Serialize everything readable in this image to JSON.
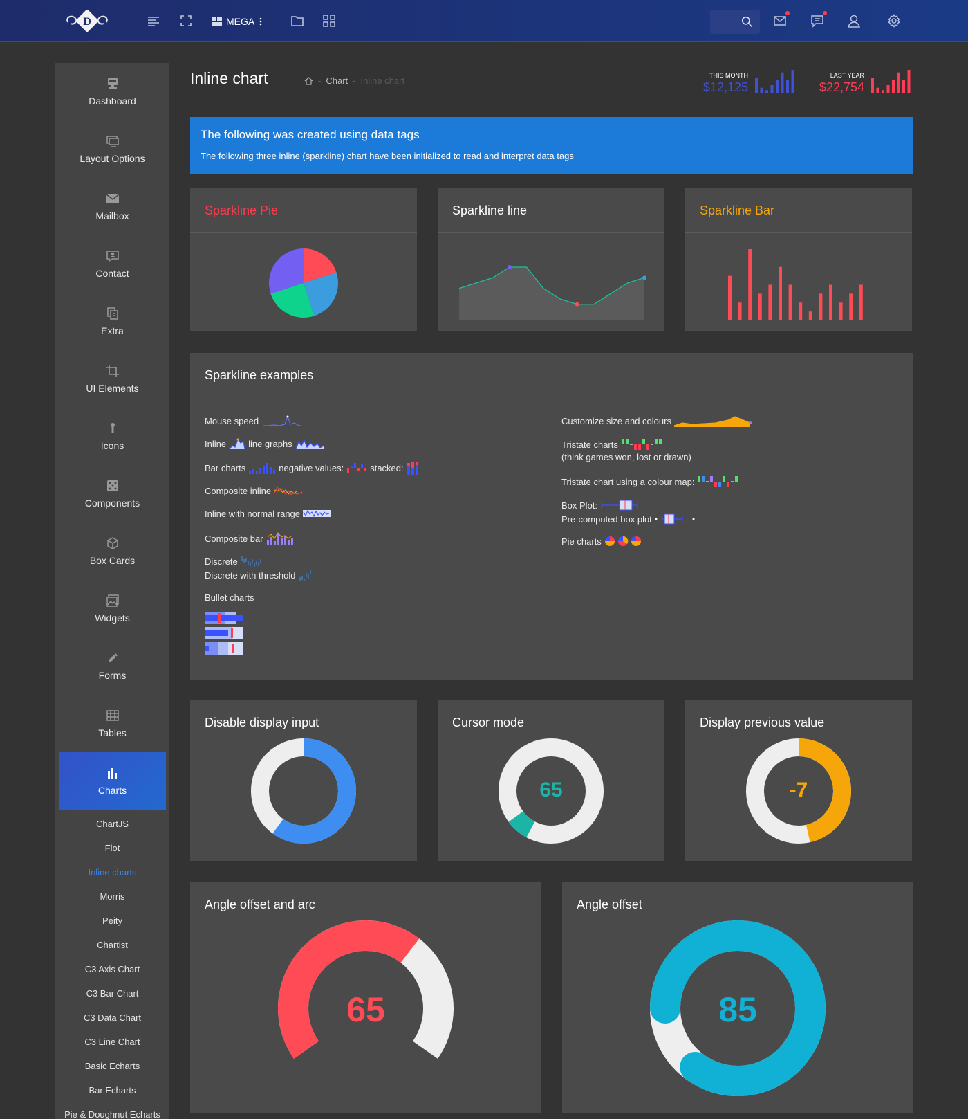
{
  "header": {
    "logo_letter": "D",
    "mega_label": "MEGA",
    "icons": [
      "menu-lines-icon",
      "expand-icon",
      "folder-icon",
      "grid-icon",
      "search-icon",
      "mail-icon",
      "chat-icon",
      "user-icon",
      "gear-icon"
    ]
  },
  "sidebar": {
    "items": [
      {
        "label": "Dashboard",
        "icon": "dashboard-icon"
      },
      {
        "label": "Layout Options",
        "icon": "monitor-icon"
      },
      {
        "label": "Mailbox",
        "icon": "mail-icon"
      },
      {
        "label": "Contact",
        "icon": "contact-icon"
      },
      {
        "label": "Extra",
        "icon": "copy-icon"
      },
      {
        "label": "UI Elements",
        "icon": "crop-icon"
      },
      {
        "label": "Icons",
        "icon": "pin-icon"
      },
      {
        "label": "Components",
        "icon": "dice-icon"
      },
      {
        "label": "Box Cards",
        "icon": "cube-icon"
      },
      {
        "label": "Widgets",
        "icon": "image-icon"
      },
      {
        "label": "Forms",
        "icon": "pen-icon"
      },
      {
        "label": "Tables",
        "icon": "table-icon"
      },
      {
        "label": "Charts",
        "icon": "bar-chart-icon"
      }
    ],
    "sub_items": [
      "ChartJS",
      "Flot",
      "Inline charts",
      "Morris",
      "Peity",
      "Chartist",
      "C3 Axis Chart",
      "C3 Bar Chart",
      "C3 Data Chart",
      "C3 Line Chart",
      "Basic Echarts",
      "Bar Echarts",
      "Pie & Doughnut Echarts"
    ]
  },
  "page": {
    "title": "Inline chart",
    "breadcrumb": {
      "section": "Chart",
      "current": "Inline chart",
      "separator": "-"
    }
  },
  "stats": {
    "this_month": {
      "label": "THIS MONTH",
      "value": "$12,125",
      "color": "#3f51d5",
      "bars": [
        6,
        2,
        1,
        3,
        5,
        8,
        5,
        9
      ]
    },
    "last_year": {
      "label": "LAST YEAR",
      "value": "$22,754",
      "color": "#ff3c54",
      "bars": [
        6,
        2,
        1,
        3,
        5,
        8,
        5,
        9
      ]
    }
  },
  "banner": {
    "heading": "The following was created using data tags",
    "text": "The following three inline (sparkline) chart have been initialized to read and interpret data tags"
  },
  "cards": {
    "pie_title": "Sparkline Pie",
    "line_title": "Sparkline line",
    "bar_title": "Sparkline Bar",
    "examples_title": "Sparkline examples"
  },
  "examples": {
    "mouse_speed": "Mouse speed",
    "inline": "Inline",
    "line_graphs": "line graphs",
    "bar_charts": "Bar charts",
    "negative_values": "negative values:",
    "stacked": "stacked:",
    "composite_inline": "Composite inline",
    "normal_range": "Inline with normal range",
    "composite_bar": "Composite bar",
    "discrete": "Discrete",
    "discrete_threshold": "Discrete with threshold",
    "bullet": "Bullet charts",
    "customize": "Customize size and colours",
    "tristate": "Tristate charts",
    "tristate_note": "(think games won, lost or drawn)",
    "tristate_map": "Tristate chart using a colour map:",
    "box_plot": "Box Plot:",
    "precomputed": "Pre-computed box plot",
    "pie_charts": "Pie charts"
  },
  "knobs": {
    "k1": {
      "title": "Disable display input",
      "value": 60,
      "color": "#3d8ef0"
    },
    "k2": {
      "title": "Cursor mode",
      "value": 65,
      "display": "65",
      "color": "#1bb5a7"
    },
    "k3": {
      "title": "Display previous value",
      "value": -7,
      "display": "-7",
      "color": "#f6a609"
    },
    "k4": {
      "title": "Angle offset and arc",
      "value": 65,
      "display": "65",
      "color": "#ff4b55"
    },
    "k5": {
      "title": "Angle offset",
      "value": 85,
      "display": "85",
      "color": "#11b1d6"
    }
  },
  "chart_data": [
    {
      "type": "pie",
      "title": "Sparkline Pie",
      "values": [
        20,
        25,
        25,
        30
      ],
      "colors": [
        "#ff4b55",
        "#3b9ddd",
        "#0ed38c",
        "#7360f2"
      ]
    },
    {
      "type": "line",
      "title": "Sparkline line",
      "values": [
        5,
        6,
        7,
        9,
        9,
        5,
        3,
        2,
        2,
        4,
        6,
        7
      ],
      "x": [
        0,
        1,
        2,
        3,
        4,
        5,
        6,
        7,
        8,
        9,
        10,
        11
      ],
      "ylim": [
        0,
        12
      ]
    },
    {
      "type": "bar",
      "title": "Sparkline Bar",
      "values": [
        5,
        2,
        8,
        3,
        4,
        6,
        4,
        2,
        1,
        3,
        4,
        2,
        3,
        4
      ],
      "ylim": [
        0,
        8
      ]
    }
  ]
}
